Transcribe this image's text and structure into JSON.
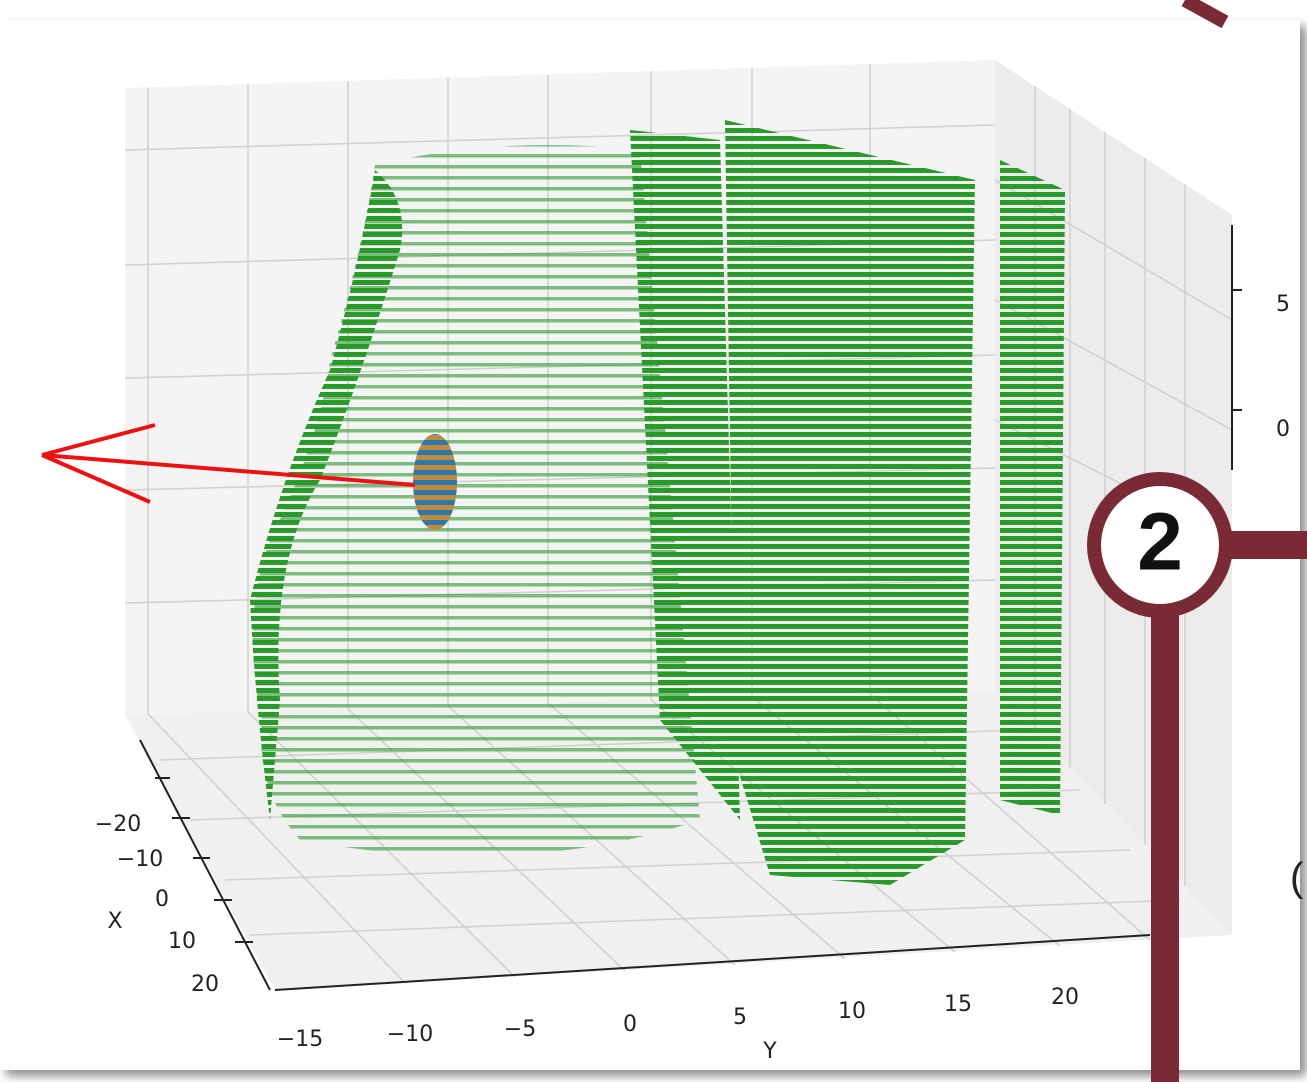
{
  "plot": {
    "z_ticks": [
      "5",
      "0"
    ],
    "x_label": "X",
    "x_ticks": [
      "−20",
      "−10",
      "0",
      "10",
      "20"
    ],
    "y_label": "Y",
    "y_ticks": [
      "−15",
      "−10",
      "−5",
      "0",
      "5",
      "10",
      "15",
      "20"
    ]
  },
  "callout": {
    "number": "2"
  },
  "clipped_text": "("
}
